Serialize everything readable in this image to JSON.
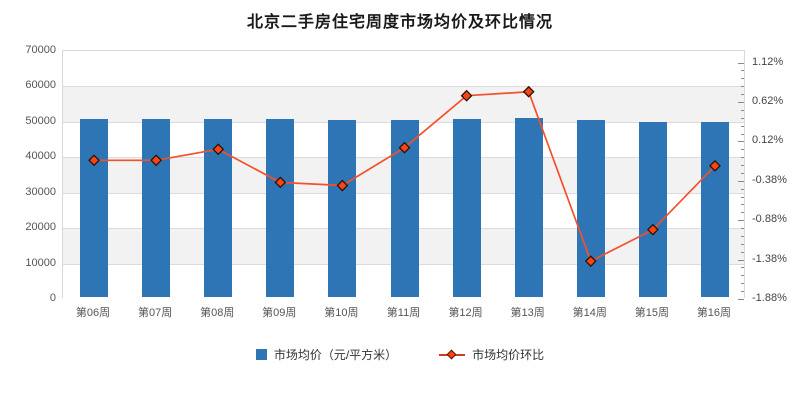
{
  "title": "北京二手房住宅周度市场均价及环比情况",
  "chart_data": {
    "type": "bar",
    "subtype": "combo-bar-line-dual-axis",
    "categories": [
      "第06周",
      "第07周",
      "第08周",
      "第09周",
      "第10周",
      "第11周",
      "第12周",
      "第13周",
      "第14周",
      "第15周",
      "第16周"
    ],
    "series": [
      {
        "name": "市场均价（元/平方米）",
        "type": "bar",
        "axis": "left",
        "values": [
          50380,
          50320,
          50330,
          50129,
          49908,
          49928,
          50278,
          50655,
          49946,
          49446,
          49352
        ]
      },
      {
        "name": "市场均价环比",
        "type": "line",
        "axis": "right",
        "values_pct": [
          -0.12,
          -0.12,
          0.02,
          -0.4,
          -0.44,
          0.04,
          0.7,
          0.75,
          -1.4,
          -1.0,
          -0.19
        ]
      }
    ],
    "left_axis": {
      "min": 0,
      "max": 70000,
      "tick_step": 10000,
      "tick_labels": [
        "0",
        "10000",
        "20000",
        "30000",
        "40000",
        "50000",
        "60000",
        "70000"
      ]
    },
    "right_axis": {
      "min": -1.88,
      "max": 1.12,
      "tick_step": 0.5,
      "minor_tick_step": 0.1,
      "tick_labels": [
        "-1.88%",
        "-1.38%",
        "-0.88%",
        "-0.38%",
        "0.12%",
        "0.62%",
        "1.12%"
      ]
    },
    "grid": "horizontal-striped-bands",
    "legend_position": "bottom"
  },
  "colors": {
    "bar": "#2e75b6",
    "line": "#f4502a",
    "marker_fill": "#fb4414",
    "marker_stroke": "#26140b",
    "band_gray": "#f2f2f2",
    "gridline": "#dcdcdc",
    "axis_text": "#555555",
    "title_text": "#1a1a1a"
  }
}
